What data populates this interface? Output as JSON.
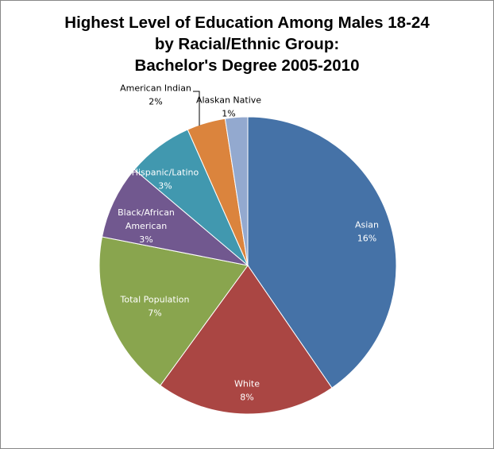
{
  "chart_data": {
    "type": "pie",
    "title": [
      "Highest Level of Education Among Males 18-24",
      "by Racial/Ethnic Group:",
      "Bachelor's Degree 2005-2010"
    ],
    "slices": [
      {
        "name": "Asian",
        "value": 16,
        "value_label": "16%",
        "name_lines": [
          "Asian"
        ],
        "color": "#4572A7",
        "label_color": "#ffffff"
      },
      {
        "name": "White",
        "value": 8,
        "value_label": "8%",
        "name_lines": [
          "White"
        ],
        "color": "#AA4643",
        "label_color": "#ffffff"
      },
      {
        "name": "Total Population",
        "value": 7,
        "value_label": "7%",
        "name_lines": [
          "Total Population"
        ],
        "color": "#89A54E",
        "label_color": "#ffffff"
      },
      {
        "name": "Black/African American",
        "value": 3,
        "value_label": "3%",
        "name_lines": [
          "Black/African",
          "American"
        ],
        "color": "#71588F",
        "label_color": "#ffffff"
      },
      {
        "name": "Hispanic/Latino",
        "value": 3,
        "value_label": "3%",
        "name_lines": [
          "Hispanic/Latino"
        ],
        "color": "#4198AF",
        "label_color": "#ffffff"
      },
      {
        "name": "American Indian",
        "value": 2,
        "value_label": "2%",
        "name_lines": [
          "American Indian"
        ],
        "color": "#DB843D",
        "label_color": "#000000"
      },
      {
        "name": "Alaskan Native",
        "value": 1,
        "value_label": "1%",
        "name_lines": [
          "Alaskan Native"
        ],
        "color": "#93A9CF",
        "label_color": "#000000"
      }
    ]
  }
}
